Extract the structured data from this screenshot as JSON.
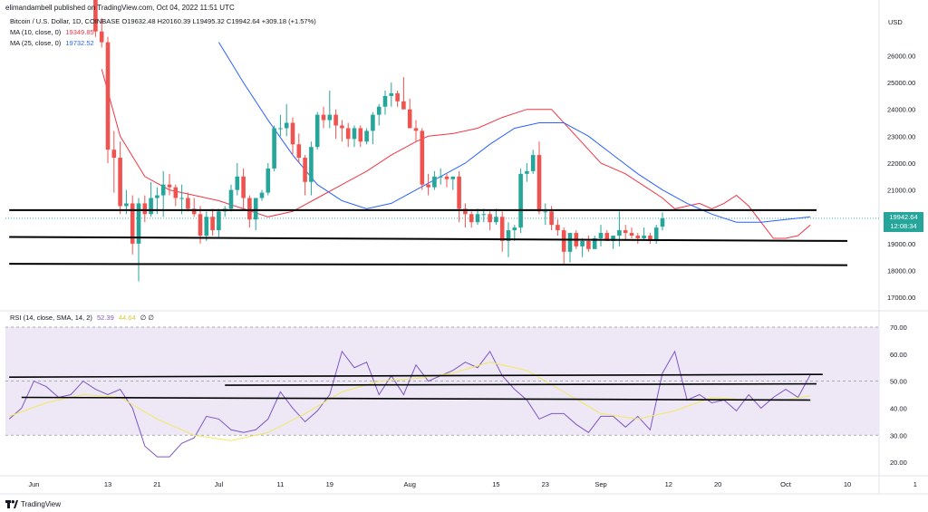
{
  "header": {
    "publisher_line": "elimandambell published on TradingView.com, Oct 04, 2022 11:51 UTC"
  },
  "legend": {
    "symbol": "Bitcoin / U.S. Dollar, 1D, COINBASE",
    "ohlc_label": "O19632.48 H20160.39 L19495.32 C19942.64 +309.18 (+1.57%)",
    "ma10_label": "MA (10, close, 0)",
    "ma10_value": "19349.85",
    "ma25_label": "MA (25, close, 0)",
    "ma25_value": "19732.52"
  },
  "rsi_legend": {
    "label": "RSI (14, close, SMA, 14, 2)",
    "rsi_value": "52.39",
    "sma_value": "44.64",
    "extra": "∅ ∅"
  },
  "currency": "USD",
  "price_badge": {
    "price": "19942.64",
    "countdown": "12:08:34"
  },
  "footer": {
    "brand": "TradingView"
  },
  "colors": {
    "up": "#26a69a",
    "down": "#ef5350",
    "ma10": "#f23645",
    "ma25": "#2962ff",
    "rsi": "#7e57c2",
    "rsi_sma": "#f2e860",
    "rsi_band": "#ede7f6",
    "trendline": "#000000"
  },
  "chart_data": [
    {
      "type": "candlestick",
      "title": "Bitcoin / U.S. Dollar, 1D, COINBASE",
      "y_unit": "USD",
      "ylim": [
        16500,
        27600
      ],
      "y_ticks": [
        17000,
        18000,
        19000,
        20000,
        21000,
        22000,
        23000,
        24000,
        25000,
        26000
      ],
      "y_tick_labels": [
        "17000.00",
        "18000.00",
        "19000.00",
        "20000.00",
        "21000.00",
        "22000.00",
        "23000.00",
        "24000.00",
        "25000.00",
        "26000.00"
      ],
      "x_axis": {
        "labels": [
          "Jun",
          "13",
          "21",
          "Jul",
          "11",
          "19",
          "Aug",
          "15",
          "23",
          "Sep",
          "12",
          "20",
          "Oct",
          "10"
        ],
        "label_day_index": [
          -2,
          10,
          18,
          28,
          38,
          46,
          59,
          73,
          81,
          90,
          101,
          109,
          120,
          130
        ],
        "extra_labels": [
          "1"
        ],
        "extra_label_day_index": [
          141
        ]
      },
      "first_day_index": 0,
      "last_day_index": 123,
      "candles": [
        [
          28400,
          29000,
          26700,
          26900
        ],
        [
          26900,
          27400,
          26300,
          26500
        ],
        [
          26500,
          26700,
          22000,
          22500
        ],
        [
          22500,
          23200,
          20900,
          22200
        ],
        [
          22200,
          22800,
          20100,
          20400
        ],
        [
          20400,
          21000,
          20100,
          20500
        ],
        [
          20500,
          20800,
          18600,
          19000
        ],
        [
          19000,
          20700,
          17600,
          20500
        ],
        [
          20500,
          20800,
          19800,
          20100
        ],
        [
          20100,
          21300,
          20000,
          20700
        ],
        [
          20700,
          21100,
          20100,
          20800
        ],
        [
          20800,
          21700,
          20000,
          21200
        ],
        [
          21200,
          21600,
          20800,
          21100
        ],
        [
          21100,
          21200,
          20400,
          20700
        ],
        [
          20700,
          21200,
          20100,
          20700
        ],
        [
          20700,
          20900,
          20200,
          20300
        ],
        [
          20300,
          20700,
          20000,
          20100
        ],
        [
          20100,
          20400,
          19000,
          19300
        ],
        [
          19300,
          20200,
          19100,
          20000
        ],
        [
          20000,
          20300,
          19300,
          19500
        ],
        [
          19500,
          20300,
          19200,
          20200
        ],
        [
          20200,
          20400,
          20000,
          20300
        ],
        [
          20300,
          21200,
          20200,
          21000
        ],
        [
          21000,
          22000,
          20800,
          21500
        ],
        [
          21500,
          21800,
          20300,
          20700
        ],
        [
          20700,
          20800,
          19600,
          19900
        ],
        [
          19900,
          20700,
          19500,
          20700
        ],
        [
          20700,
          21000,
          20600,
          20900
        ],
        [
          20900,
          22000,
          20800,
          21800
        ],
        [
          21800,
          23400,
          21700,
          23300
        ],
        [
          23300,
          23800,
          23000,
          23300
        ],
        [
          23300,
          24200,
          23000,
          23500
        ],
        [
          23500,
          23700,
          22300,
          22700
        ],
        [
          22700,
          23100,
          22000,
          22200
        ],
        [
          22200,
          22300,
          20800,
          21300
        ],
        [
          21300,
          22800,
          20800,
          22600
        ],
        [
          22600,
          23900,
          22500,
          23800
        ],
        [
          23800,
          24100,
          23300,
          23600
        ],
        [
          23600,
          24700,
          23300,
          23800
        ],
        [
          23800,
          24000,
          22900,
          23400
        ],
        [
          23400,
          23600,
          22800,
          23300
        ],
        [
          23300,
          23500,
          22600,
          22900
        ],
        [
          22900,
          23400,
          22600,
          23300
        ],
        [
          23300,
          23400,
          22600,
          22800
        ],
        [
          22800,
          23300,
          22700,
          23200
        ],
        [
          23200,
          23900,
          22700,
          23800
        ],
        [
          23800,
          24200,
          23400,
          24100
        ],
        [
          24100,
          24700,
          23800,
          24500
        ],
        [
          24500,
          25000,
          24100,
          24600
        ],
        [
          24600,
          24700,
          24100,
          24300
        ],
        [
          24300,
          25200,
          24100,
          24000
        ],
        [
          24000,
          24400,
          23300,
          23300
        ],
        [
          23300,
          23600,
          22800,
          23200
        ],
        [
          23200,
          23300,
          21000,
          21200
        ],
        [
          21200,
          21600,
          20800,
          21100
        ],
        [
          21100,
          21700,
          21000,
          21500
        ],
        [
          21500,
          21800,
          21200,
          21500
        ],
        [
          21500,
          21600,
          21100,
          21400
        ],
        [
          21400,
          21500,
          21000,
          21500
        ],
        [
          21500,
          21700,
          19800,
          20300
        ],
        [
          20300,
          20500,
          19600,
          20100
        ],
        [
          20100,
          20200,
          19600,
          19800
        ],
        [
          19800,
          20300,
          19700,
          20100
        ],
        [
          20100,
          20300,
          19800,
          20100
        ],
        [
          20100,
          20200,
          19500,
          19800
        ],
        [
          19800,
          20300,
          19700,
          20000
        ],
        [
          20000,
          20200,
          18700,
          19100
        ],
        [
          19100,
          19800,
          18500,
          19500
        ],
        [
          19500,
          19700,
          19100,
          19600
        ],
        [
          19600,
          21800,
          19400,
          21600
        ],
        [
          21600,
          22000,
          21300,
          21700
        ],
        [
          21700,
          22500,
          21600,
          22300
        ],
        [
          22300,
          22800,
          20100,
          20200
        ],
        [
          20200,
          20500,
          19700,
          20200
        ],
        [
          20200,
          20400,
          19500,
          19700
        ],
        [
          19700,
          19900,
          19300,
          19500
        ],
        [
          19500,
          19600,
          18200,
          18700
        ],
        [
          18700,
          19400,
          18300,
          19400
        ],
        [
          19400,
          19500,
          18800,
          18900
        ],
        [
          18900,
          19200,
          18500,
          19100
        ],
        [
          19100,
          19300,
          18700,
          18800
        ],
        [
          18800,
          19300,
          18800,
          19200
        ],
        [
          19200,
          19700,
          18900,
          19400
        ],
        [
          19400,
          19500,
          19100,
          19100
        ],
        [
          19100,
          19200,
          18800,
          19300
        ],
        [
          19300,
          20200,
          18900,
          19500
        ],
        [
          19500,
          19700,
          19100,
          19400
        ],
        [
          19400,
          19600,
          19200,
          19300
        ],
        [
          19300,
          19400,
          19000,
          19200
        ],
        [
          19200,
          19600,
          19100,
          19300
        ],
        [
          19300,
          19400,
          19000,
          19100
        ],
        [
          19100,
          19700,
          19000,
          19600
        ],
        [
          19632.48,
          20160.39,
          19495.32,
          19942.64
        ]
      ],
      "candles_first_day_index": 8,
      "series": [
        {
          "name": "MA (10, close, 0)",
          "x": [
            9,
            12,
            16,
            20,
            24,
            28,
            32,
            36,
            40,
            44,
            48,
            52,
            56,
            60,
            62,
            66,
            70,
            74,
            78,
            82,
            86,
            90,
            94,
            98,
            100,
            102,
            104,
            106,
            108,
            110,
            112,
            114,
            116,
            118,
            120,
            122,
            124
          ],
          "values": [
            25500,
            23000,
            21500,
            21000,
            20800,
            20600,
            20300,
            20000,
            20200,
            20700,
            21200,
            21700,
            22300,
            22800,
            23000,
            23100,
            23300,
            23700,
            24000,
            24000,
            23000,
            22000,
            21600,
            21000,
            20700,
            20300,
            20400,
            20500,
            20300,
            20500,
            20800,
            20400,
            19800,
            19200,
            19200,
            19300,
            19700
          ]
        },
        {
          "name": "MA (25, close, 0)",
          "x": [
            28,
            32,
            36,
            40,
            44,
            48,
            52,
            56,
            60,
            64,
            68,
            72,
            76,
            80,
            84,
            88,
            92,
            96,
            100,
            104,
            108,
            112,
            116,
            120,
            124
          ],
          "values": [
            26500,
            25000,
            23600,
            22300,
            21200,
            20600,
            20300,
            20500,
            21000,
            21500,
            22000,
            22700,
            23300,
            23500,
            23500,
            23000,
            22300,
            21600,
            21000,
            20500,
            20100,
            19800,
            19800,
            19900,
            20000
          ]
        }
      ],
      "annotations": [
        {
          "type": "trendline",
          "from": [
            -6,
            20250
          ],
          "to": [
            125,
            20250
          ]
        },
        {
          "type": "trendline",
          "from": [
            -6,
            19250
          ],
          "to": [
            130,
            19100
          ]
        },
        {
          "type": "trendline",
          "from": [
            -6,
            18250
          ],
          "to": [
            130,
            18200
          ]
        }
      ]
    },
    {
      "type": "line",
      "title": "RSI (14, close, SMA, 14, 2)",
      "ylim": [
        15,
        72
      ],
      "y_ticks": [
        20,
        30,
        40,
        50,
        60,
        70
      ],
      "y_tick_labels": [
        "20.00",
        "30.00",
        "40.00",
        "50.00",
        "60.00",
        "70.00"
      ],
      "band": [
        30,
        70
      ],
      "series": [
        {
          "name": "RSI",
          "x": [
            -6,
            -4,
            -2,
            0,
            2,
            4,
            6,
            8,
            10,
            12,
            14,
            16,
            18,
            20,
            22,
            24,
            26,
            28,
            30,
            32,
            34,
            36,
            38,
            40,
            42,
            44,
            46,
            48,
            50,
            52,
            54,
            56,
            58,
            60,
            62,
            64,
            66,
            68,
            70,
            72,
            74,
            76,
            78,
            80,
            82,
            84,
            86,
            88,
            90,
            92,
            94,
            96,
            98,
            100,
            102,
            104,
            106,
            108,
            110,
            112,
            114,
            116,
            118,
            120,
            122,
            124
          ],
          "values": [
            36,
            40,
            50,
            48,
            44,
            45,
            50,
            47,
            45,
            47,
            40,
            26,
            22,
            22,
            27,
            29,
            37,
            36,
            32,
            31,
            32,
            36,
            46,
            40,
            35,
            39,
            45,
            61,
            55,
            57,
            45,
            52,
            45,
            56,
            50,
            52,
            54,
            57,
            55,
            61,
            52,
            47,
            43,
            36,
            38,
            38,
            34,
            31,
            37,
            37,
            33,
            37,
            32,
            53,
            61,
            43,
            45,
            42,
            43,
            39,
            45,
            40,
            44,
            47,
            44,
            52.39
          ]
        },
        {
          "name": "RSI-based MA",
          "x": [
            -6,
            0,
            6,
            12,
            18,
            24,
            30,
            36,
            42,
            48,
            54,
            60,
            66,
            72,
            78,
            84,
            90,
            96,
            102,
            108,
            114,
            120,
            124
          ],
          "values": [
            37,
            42,
            45,
            44,
            36,
            30,
            28,
            31,
            38,
            46,
            50,
            51,
            53,
            57,
            54,
            46,
            38,
            36,
            39,
            44,
            43,
            43,
            44.64
          ]
        }
      ],
      "annotations": [
        {
          "type": "trendline",
          "from": [
            -6,
            51.5
          ],
          "to": [
            126,
            52.5
          ]
        },
        {
          "type": "trendline",
          "from": [
            29,
            48.5
          ],
          "to": [
            125,
            49
          ]
        },
        {
          "type": "trendline",
          "from": [
            -4,
            44
          ],
          "to": [
            124,
            43
          ]
        }
      ]
    }
  ]
}
